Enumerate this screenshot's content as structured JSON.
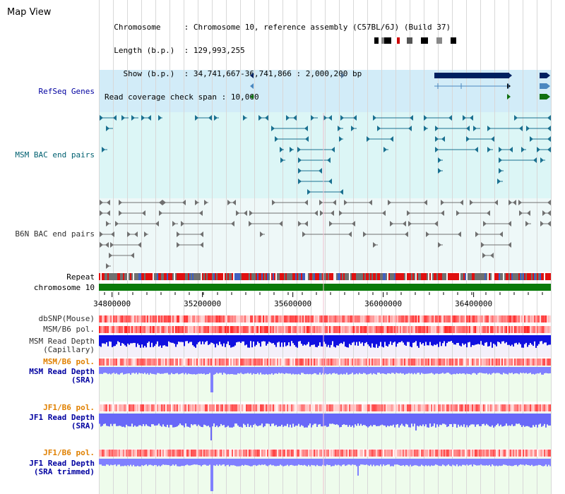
{
  "page": {
    "title": "Map View"
  },
  "info": {
    "chromosome_key": "Chromosome",
    "chromosome_value": "Chromosome 10, reference assembly (C57BL/6J) (Build 37)",
    "length_key": "Length (b.p.)",
    "length_value": "129,993,255",
    "show_key": "Show (b.p.)",
    "show_value": "34,741,667-36,741,866 : 2,000,200 bp",
    "coverage_key": "Read coverage check span",
    "coverage_value": "10,000"
  },
  "tracks": {
    "refseq": "RefSeq Genes",
    "msm_bac": "MSM BAC end pairs",
    "b6n_bac": "B6N BAC end pairs",
    "repeat": "Repeat",
    "chromosome": "chromosome 10",
    "dbsnp": "dbSNP(Mouse)",
    "msm_b6_pol": "MSM/B6 pol.",
    "msm_depth_cap_1": "MSM Read Depth",
    "msm_depth_cap_2": "(Capillary)",
    "msm_b6_pol_2": "MSM/B6 pol.",
    "msm_depth_sra_1": "MSM Read Depth",
    "msm_depth_sra_2": "(SRA)",
    "jf1_b6_pol": "JF1/B6 pol.",
    "jf1_depth_sra_1": "JF1 Read Depth",
    "jf1_depth_sra_2": "(SRA)",
    "jf1_b6_pol_2": "JF1/B6 pol.",
    "jf1_depth_trim_1": "JF1 Read Depth",
    "jf1_depth_trim_2": "(SRA trimmed)"
  },
  "axis": {
    "ticks": [
      "34800000",
      "35200000",
      "35600000",
      "36000000",
      "36400000"
    ],
    "tick_values": [
      34800000,
      35200000,
      35600000,
      36000000,
      36400000
    ],
    "range": [
      34741667,
      36741866
    ]
  },
  "colors": {
    "refseq_bg": "#d2ecf8",
    "msm_bg": "#dcf6f6",
    "b6n_bg": "#eef8f8",
    "gene_dark": "#002060",
    "gene_mid": "#4a88c0",
    "gene_green": "#107010",
    "msm_feature": "#1a7090",
    "b6n_feature": "#707070",
    "chromosome_bar": "#0a7a0a",
    "snp_red": "#ff3030",
    "depth_dark_blue": "#1010e0",
    "depth_light_blue": "#8080ff",
    "label_blue": "#0000a0",
    "label_teal": "#006070",
    "label_orange": "#e08000"
  }
}
